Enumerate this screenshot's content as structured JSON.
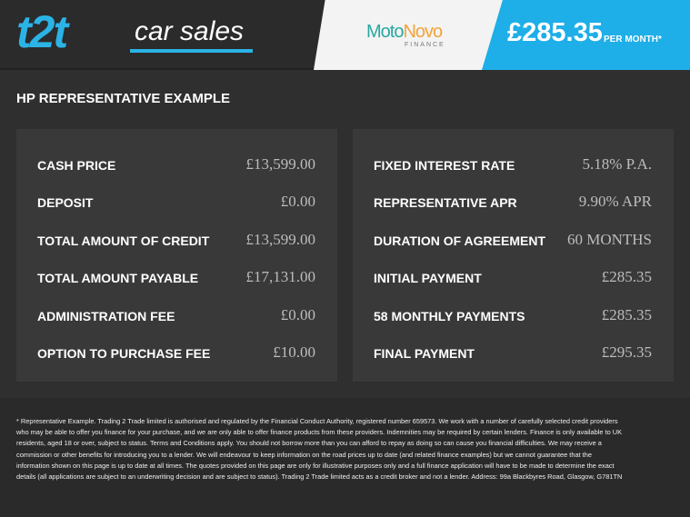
{
  "header": {
    "logo_main": "t2t",
    "logo_sub": "car sales",
    "lender_moto": "Moto",
    "lender_novo": "Novo",
    "lender_finance": "FINANCE",
    "price": "£285.35",
    "per_month": "PER MONTH*"
  },
  "title": "HP REPRESENTATIVE EXAMPLE",
  "left": [
    {
      "label": "CASH PRICE",
      "value": "£13,599.00"
    },
    {
      "label": "DEPOSIT",
      "value": "£0.00"
    },
    {
      "label": "TOTAL AMOUNT OF CREDIT",
      "value": "£13,599.00"
    },
    {
      "label": "TOTAL AMOUNT PAYABLE",
      "value": "£17,131.00"
    },
    {
      "label": "ADMINISTRATION FEE",
      "value": "£0.00"
    },
    {
      "label": "OPTION TO PURCHASE FEE",
      "value": "£10.00"
    }
  ],
  "right": [
    {
      "label": "FIXED INTEREST RATE",
      "value": "5.18% P.A."
    },
    {
      "label": "REPRESENTATIVE APR",
      "value": "9.90% APR"
    },
    {
      "label": "DURATION OF AGREEMENT",
      "value": "60 MONTHS"
    },
    {
      "label": "INITIAL PAYMENT",
      "value": "£285.35"
    },
    {
      "label": "58 MONTHLY PAYMENTS",
      "value": "£285.35"
    },
    {
      "label": "FINAL PAYMENT",
      "value": "£295.35"
    }
  ],
  "disclaimer": "* Representative Example. Trading 2 Trade limited is authorised and regulated by the Financial Conduct Authority, registered number 659573. We work with a number of carefully selected credit providers who may be able to offer you finance for your purchase, and we are only able to offer finance products from these providers. Indemnities may be required by certain lenders. Finance is only available to UK residents, aged 18 or over, subject to status. Terms and Conditions apply. You should not borrow more than you can afford to repay as doing so can cause you financial difficulties. We may receive a commission or other benefits for introducing you to a lender. We will endeavour to keep information on the road prices up to date (and related finance examples) but we cannot guarantee that the information shown on this page is up to date at all times. The quotes provided on this page are only for illustrative purposes only and a full finance application will have to be made to determine the exact details (all applications are subject to an underwriting decision and are subject to status). Trading 2 Trade limited acts as a credit broker and not a lender. Address: 99a Blackbyres Road, Glasgow, G781TN",
  "colors": {
    "accent": "#1eaee8",
    "background": "#2f2f2f",
    "panel": "#393939"
  }
}
